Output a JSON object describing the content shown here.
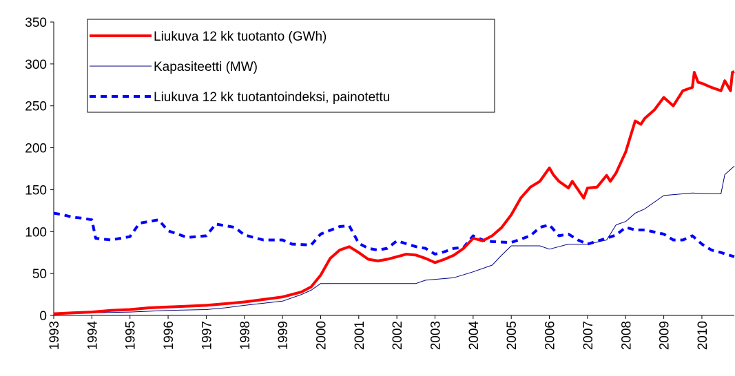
{
  "chart_data": {
    "type": "line",
    "xlim": [
      1993,
      2010.85
    ],
    "xticks": [
      1993,
      1994,
      1995,
      1996,
      1997,
      1998,
      1999,
      2000,
      2001,
      2002,
      2003,
      2004,
      2005,
      2006,
      2007,
      2008,
      2009,
      2010
    ],
    "ylim": [
      0,
      350
    ],
    "yticks": [
      0,
      50,
      100,
      150,
      200,
      250,
      300,
      350
    ],
    "grid": false,
    "legend": "upper left",
    "series": [
      {
        "name": "Liukuva 12 kk tuotanto (GWh)",
        "color": "#ff0000",
        "style": "solid",
        "width": 4,
        "x": [
          1993,
          1993.5,
          1994,
          1994.5,
          1995,
          1995.5,
          1996,
          1996.5,
          1997,
          1997.5,
          1998,
          1998.5,
          1999,
          1999.25,
          1999.5,
          1999.75,
          2000,
          2000.25,
          2000.5,
          2000.75,
          2001,
          2001.25,
          2001.5,
          2001.75,
          2002,
          2002.25,
          2002.5,
          2002.75,
          2003,
          2003.25,
          2003.5,
          2003.75,
          2004,
          2004.25,
          2004.5,
          2004.75,
          2005,
          2005.25,
          2005.5,
          2005.75,
          2006,
          2006.1,
          2006.25,
          2006.5,
          2006.6,
          2006.75,
          2006.9,
          2007,
          2007.25,
          2007.5,
          2007.6,
          2007.75,
          2008,
          2008.25,
          2008.4,
          2008.5,
          2008.75,
          2009,
          2009.25,
          2009.5,
          2009.75,
          2009.8,
          2009.9,
          2010,
          2010.25,
          2010.5,
          2010.6,
          2010.75,
          2010.8,
          2010.85
        ],
        "values": [
          2,
          3,
          4,
          6,
          7,
          9,
          10,
          11,
          12,
          14,
          16,
          19,
          22,
          25,
          28,
          34,
          48,
          68,
          78,
          82,
          75,
          67,
          65,
          67,
          70,
          73,
          72,
          68,
          63,
          67,
          72,
          80,
          92,
          89,
          95,
          105,
          120,
          140,
          153,
          160,
          176,
          168,
          160,
          152,
          160,
          150,
          140,
          152,
          153,
          167,
          160,
          170,
          195,
          232,
          228,
          235,
          245,
          260,
          250,
          268,
          272,
          290,
          278,
          277,
          272,
          268,
          280,
          268,
          290,
          291
        ]
      },
      {
        "name": "Kapasiteetti (MW)",
        "color": "#000080",
        "style": "solid",
        "width": 1,
        "x": [
          1993,
          1994,
          1995,
          1996,
          1997,
          1997.5,
          1998,
          1999,
          1999.5,
          1999.75,
          2000,
          2002.5,
          2002.75,
          2003.5,
          2004,
          2004.5,
          2004.75,
          2005,
          2005.75,
          2006,
          2006.25,
          2006.5,
          2007,
          2007.5,
          2007.75,
          2008,
          2008.25,
          2008.5,
          2009,
          2009.75,
          2010.25,
          2010.5,
          2010.6,
          2010.85
        ],
        "values": [
          1,
          3,
          4,
          6,
          7,
          9,
          12,
          17,
          25,
          30,
          38,
          38,
          42,
          45,
          52,
          60,
          72,
          83,
          83,
          79,
          82,
          85,
          85,
          90,
          108,
          112,
          122,
          127,
          143,
          146,
          145,
          145,
          168,
          178
        ]
      },
      {
        "name": "Liukuva 12 kk tuotantoindeksi, painotettu",
        "color": "#0000ff",
        "style": "dashed",
        "width": 4,
        "x": [
          1993,
          1993.25,
          1993.5,
          1993.75,
          1994,
          1994.1,
          1994.5,
          1995,
          1995.25,
          1995.75,
          1996,
          1996.5,
          1997,
          1997.25,
          1997.75,
          1998,
          1998.5,
          1999,
          1999.25,
          1999.75,
          2000,
          2000.5,
          2000.75,
          2001,
          2001.25,
          2001.5,
          2001.75,
          2002,
          2002.5,
          2002.75,
          2003,
          2003.25,
          2003.5,
          2003.75,
          2004,
          2004.25,
          2004.5,
          2005,
          2005.5,
          2005.75,
          2006,
          2006.25,
          2006.5,
          2006.75,
          2007,
          2007.5,
          2007.75,
          2008,
          2008.25,
          2008.5,
          2009,
          2009.25,
          2009.5,
          2009.75,
          2010,
          2010.25,
          2010.5,
          2010.85
        ],
        "values": [
          122,
          120,
          117,
          116,
          114,
          92,
          90,
          94,
          110,
          114,
          101,
          93,
          95,
          109,
          105,
          96,
          90,
          90,
          85,
          84,
          97,
          106,
          107,
          86,
          80,
          78,
          80,
          89,
          82,
          80,
          73,
          76,
          80,
          81,
          95,
          90,
          88,
          87,
          95,
          105,
          108,
          95,
          97,
          90,
          85,
          92,
          96,
          105,
          102,
          102,
          97,
          90,
          90,
          95,
          85,
          78,
          75,
          70
        ]
      }
    ]
  }
}
